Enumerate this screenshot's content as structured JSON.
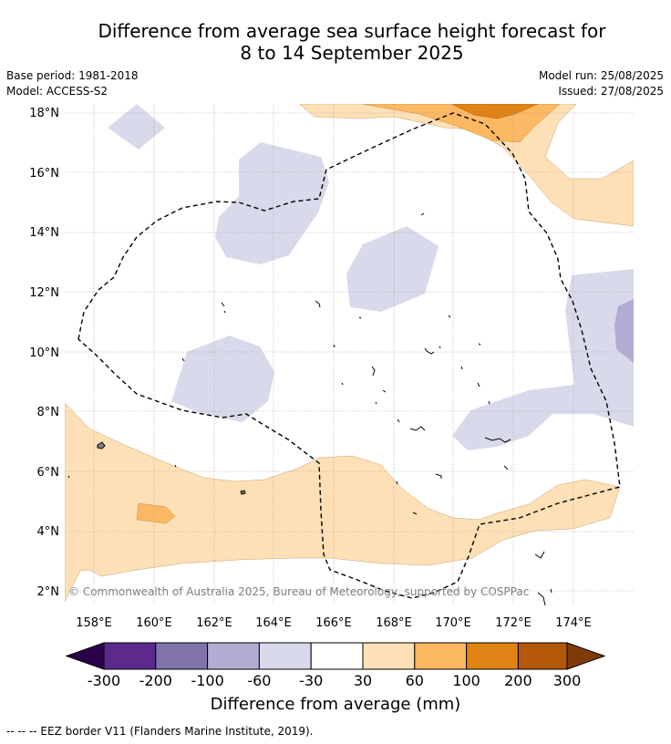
{
  "title": {
    "line1": "Difference from average sea surface height forecast for",
    "line2": "8 to 14 September 2025"
  },
  "meta": {
    "base_period": "Base period: 1981-2018",
    "model": "Model: ACCESS-S2",
    "model_run": "Model run: 25/08/2025",
    "issued": "Issued: 27/08/2025"
  },
  "map": {
    "lat_labels": [
      "18°N",
      "16°N",
      "14°N",
      "12°N",
      "10°N",
      "8°N",
      "6°N",
      "4°N",
      "2°N"
    ],
    "lon_labels": [
      "158°E",
      "160°E",
      "162°E",
      "164°E",
      "166°E",
      "168°E",
      "170°E",
      "172°E",
      "174°E"
    ],
    "copyright": "© Commonwealth of Australia 2025, Bureau of Meteorology, supported by COSPPac"
  },
  "colorbar": {
    "tick_labels": [
      "-300",
      "-200",
      "-100",
      "-60",
      "-30",
      "30",
      "60",
      "100",
      "200",
      "300"
    ],
    "colors": [
      "#2d004b",
      "#5b2a8c",
      "#8073ac",
      "#b2abd2",
      "#d8daeb",
      "#ffffff",
      "#fee0b6",
      "#fdb863",
      "#e08214",
      "#b35806",
      "#7f3b08"
    ],
    "title": "Difference from average (mm)"
  },
  "footnote": "-- -- -- EEZ border V11 (Flanders Marine Institute, 2019)."
}
